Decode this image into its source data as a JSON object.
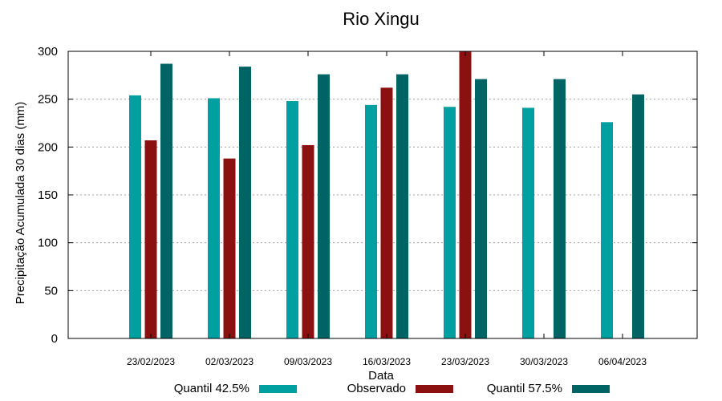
{
  "chart_data": {
    "type": "bar",
    "title": "Rio Xingu",
    "xlabel": "Data",
    "ylabel": "Precipitação Acumulada 30 dias (mm)",
    "ylim": [
      0,
      300
    ],
    "yticks": [
      0,
      50,
      100,
      150,
      200,
      250,
      300
    ],
    "grid": true,
    "legend_position": "bottom",
    "categories": [
      "23/02/2023",
      "02/03/2023",
      "09/03/2023",
      "16/03/2023",
      "23/03/2023",
      "30/03/2023",
      "06/04/2023"
    ],
    "series": [
      {
        "name": "Quantil 42.5%",
        "color": "#00a0a0",
        "values": [
          254,
          251,
          248,
          244,
          242,
          241,
          226
        ]
      },
      {
        "name": "Observado",
        "color": "#8b1010",
        "values": [
          207,
          188,
          202,
          262,
          300,
          null,
          null
        ]
      },
      {
        "name": "Quantil 57.5%",
        "color": "#006464",
        "values": [
          287,
          284,
          276,
          276,
          271,
          271,
          255
        ]
      }
    ]
  }
}
